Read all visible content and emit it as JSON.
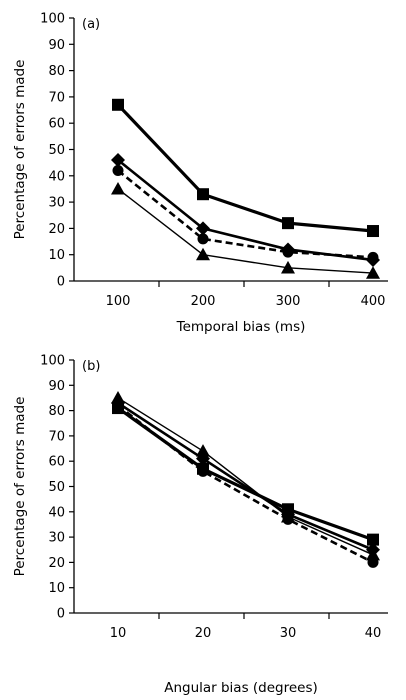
{
  "chart_data": [
    {
      "type": "line",
      "panel_label": "(a)",
      "xlabel": "Temporal bias (ms)",
      "ylabel": "Percentage of errors made",
      "categories": [
        "100",
        "200",
        "300",
        "400"
      ],
      "x": [
        100,
        200,
        300,
        400
      ],
      "ylim": [
        0,
        100
      ],
      "yticks": [
        0,
        10,
        20,
        30,
        40,
        50,
        60,
        70,
        80,
        90,
        100
      ],
      "grid": false,
      "legend": "none",
      "series": [
        {
          "marker": "square",
          "line": "thick-solid",
          "values": [
            67,
            33,
            22,
            19
          ]
        },
        {
          "marker": "diamond",
          "line": "solid",
          "values": [
            46,
            20,
            12,
            8
          ]
        },
        {
          "marker": "circle",
          "line": "dashed",
          "values": [
            42,
            16,
            11,
            9
          ]
        },
        {
          "marker": "triangle",
          "line": "thin-solid",
          "values": [
            35,
            10,
            5,
            3
          ]
        }
      ]
    },
    {
      "type": "line",
      "panel_label": "(b)",
      "xlabel": "Angular bias (degrees)",
      "ylabel": "Percentage of errors made",
      "categories": [
        "10",
        "20",
        "30",
        "40"
      ],
      "x": [
        10,
        20,
        30,
        40
      ],
      "ylim": [
        0,
        100
      ],
      "yticks": [
        0,
        10,
        20,
        30,
        40,
        50,
        60,
        70,
        80,
        90,
        100
      ],
      "grid": false,
      "legend": "none",
      "series": [
        {
          "marker": "square",
          "line": "thick-solid",
          "values": [
            81,
            57,
            41,
            29
          ]
        },
        {
          "marker": "diamond",
          "line": "solid",
          "values": [
            83,
            61,
            39,
            25
          ]
        },
        {
          "marker": "triangle",
          "line": "thin-solid",
          "values": [
            85,
            64,
            38,
            23
          ]
        },
        {
          "marker": "circle",
          "line": "dashed",
          "values": [
            82,
            56,
            37,
            20
          ]
        }
      ]
    }
  ]
}
